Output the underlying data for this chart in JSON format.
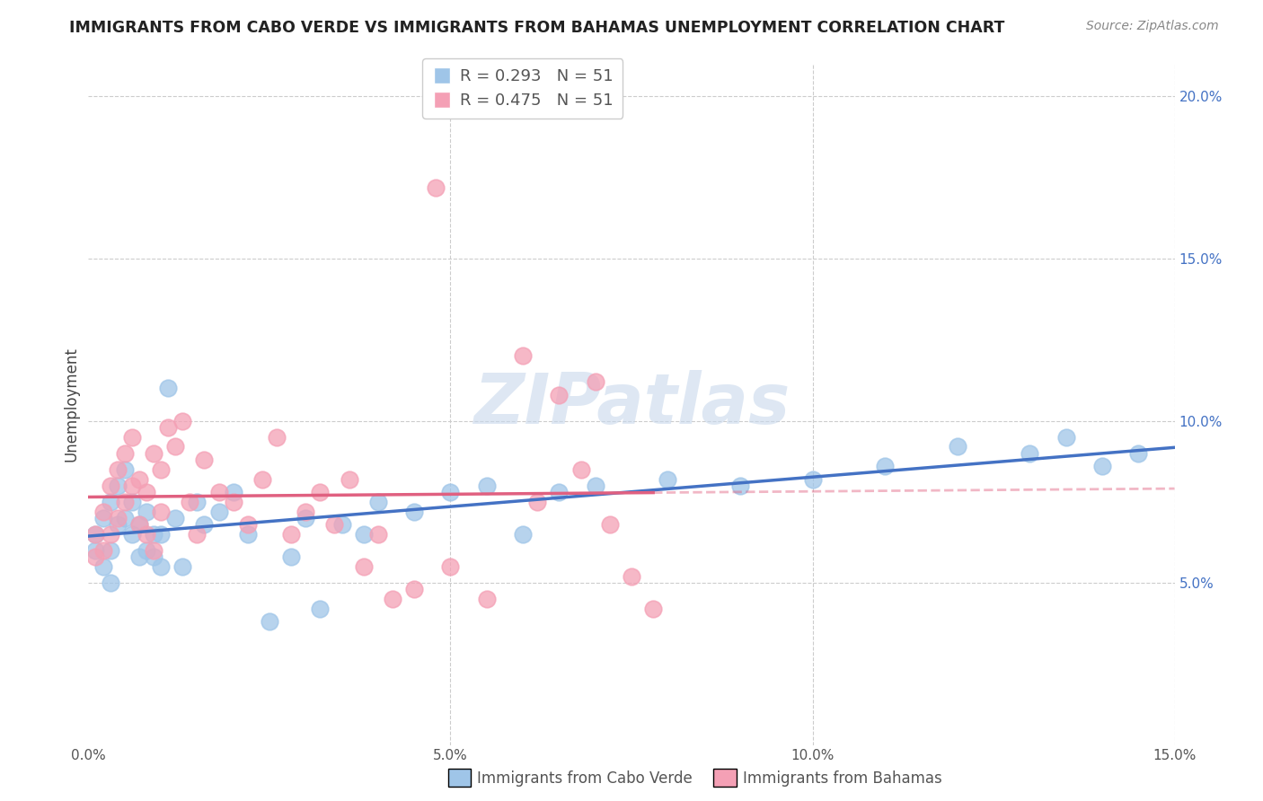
{
  "title": "IMMIGRANTS FROM CABO VERDE VS IMMIGRANTS FROM BAHAMAS UNEMPLOYMENT CORRELATION CHART",
  "source": "Source: ZipAtlas.com",
  "ylabel": "Unemployment",
  "xlabel_cabo": "Immigrants from Cabo Verde",
  "xlabel_bahamas": "Immigrants from Bahamas",
  "r_cabo": 0.293,
  "n_cabo": 51,
  "r_bahamas": 0.475,
  "n_bahamas": 51,
  "xlim": [
    0.0,
    0.15
  ],
  "ylim": [
    0.0,
    0.21
  ],
  "yticks": [
    0.05,
    0.1,
    0.15,
    0.2
  ],
  "xticks": [
    0.0,
    0.05,
    0.1,
    0.15
  ],
  "color_cabo": "#9FC5E8",
  "color_bahamas": "#F4A0B5",
  "line_color_cabo": "#4472C4",
  "line_color_bahamas": "#E06080",
  "watermark": "ZIPatlas",
  "cabo_x": [
    0.001,
    0.001,
    0.002,
    0.002,
    0.003,
    0.003,
    0.003,
    0.004,
    0.004,
    0.005,
    0.005,
    0.006,
    0.006,
    0.007,
    0.007,
    0.008,
    0.008,
    0.009,
    0.009,
    0.01,
    0.01,
    0.011,
    0.012,
    0.013,
    0.015,
    0.016,
    0.018,
    0.02,
    0.022,
    0.025,
    0.028,
    0.03,
    0.032,
    0.035,
    0.038,
    0.04,
    0.045,
    0.05,
    0.055,
    0.06,
    0.065,
    0.07,
    0.08,
    0.09,
    0.1,
    0.11,
    0.12,
    0.13,
    0.135,
    0.14,
    0.145
  ],
  "cabo_y": [
    0.065,
    0.06,
    0.07,
    0.055,
    0.075,
    0.06,
    0.05,
    0.08,
    0.068,
    0.085,
    0.07,
    0.065,
    0.075,
    0.058,
    0.068,
    0.072,
    0.06,
    0.065,
    0.058,
    0.055,
    0.065,
    0.11,
    0.07,
    0.055,
    0.075,
    0.068,
    0.072,
    0.078,
    0.065,
    0.038,
    0.058,
    0.07,
    0.042,
    0.068,
    0.065,
    0.075,
    0.072,
    0.078,
    0.08,
    0.065,
    0.078,
    0.08,
    0.082,
    0.08,
    0.082,
    0.086,
    0.092,
    0.09,
    0.095,
    0.086,
    0.09
  ],
  "bahamas_x": [
    0.001,
    0.001,
    0.002,
    0.002,
    0.003,
    0.003,
    0.004,
    0.004,
    0.005,
    0.005,
    0.006,
    0.006,
    0.007,
    0.007,
    0.008,
    0.008,
    0.009,
    0.009,
    0.01,
    0.01,
    0.011,
    0.012,
    0.013,
    0.014,
    0.015,
    0.016,
    0.018,
    0.02,
    0.022,
    0.024,
    0.026,
    0.028,
    0.03,
    0.032,
    0.034,
    0.036,
    0.038,
    0.04,
    0.042,
    0.045,
    0.048,
    0.05,
    0.055,
    0.06,
    0.062,
    0.065,
    0.068,
    0.07,
    0.072,
    0.075,
    0.078
  ],
  "bahamas_y": [
    0.065,
    0.058,
    0.072,
    0.06,
    0.08,
    0.065,
    0.085,
    0.07,
    0.09,
    0.075,
    0.095,
    0.08,
    0.068,
    0.082,
    0.078,
    0.065,
    0.09,
    0.06,
    0.085,
    0.072,
    0.098,
    0.092,
    0.1,
    0.075,
    0.065,
    0.088,
    0.078,
    0.075,
    0.068,
    0.082,
    0.095,
    0.065,
    0.072,
    0.078,
    0.068,
    0.082,
    0.055,
    0.065,
    0.045,
    0.048,
    0.172,
    0.055,
    0.045,
    0.12,
    0.075,
    0.108,
    0.085,
    0.112,
    0.068,
    0.052,
    0.042
  ]
}
